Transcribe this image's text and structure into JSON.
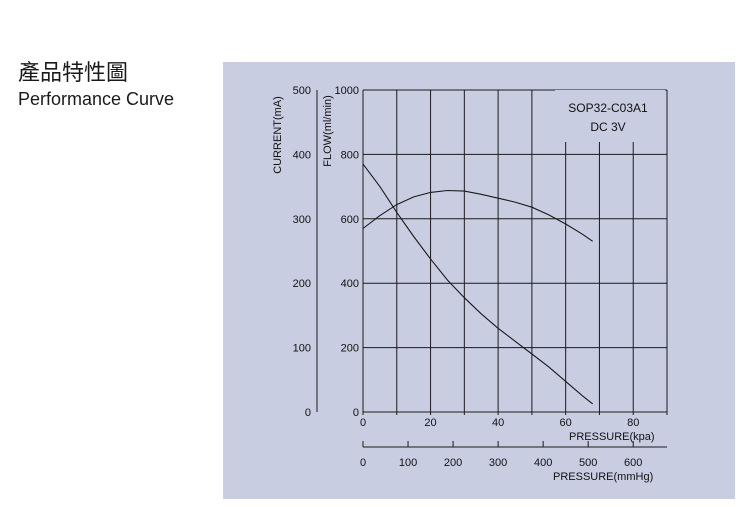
{
  "header": {
    "title_zh": "產品特性圖",
    "title_en": "Performance Curve"
  },
  "panel": {
    "background": "#c9cde1",
    "line_color": "#1a1a1a"
  },
  "chart_data": {
    "type": "line",
    "title": "",
    "model": "SOP32-C03A1",
    "voltage": "DC 3V",
    "x_axis": {
      "label": "PRESSURE(kpa)",
      "range": [
        0,
        90
      ],
      "ticks": [
        0,
        20,
        40,
        60,
        80
      ],
      "grid": [
        0,
        10,
        20,
        30,
        40,
        50,
        60,
        70,
        80,
        90
      ]
    },
    "x2_axis": {
      "label": "PRESSURE(mmHg)",
      "range": [
        0,
        675
      ],
      "ticks": [
        0,
        100,
        200,
        300,
        400,
        500,
        600
      ]
    },
    "y_flow": {
      "label": "FLOW(ml/min)",
      "range": [
        0,
        1000
      ],
      "ticks": [
        0,
        200,
        400,
        600,
        800,
        1000
      ],
      "grid": [
        0,
        200,
        400,
        600,
        800,
        1000
      ]
    },
    "y_current": {
      "label": "CURRENT(mA)",
      "range": [
        0,
        500
      ],
      "ticks": [
        0,
        100,
        200,
        300,
        400,
        500
      ]
    },
    "grid": true,
    "series": [
      {
        "axis": "flow",
        "x": [
          0,
          5,
          10,
          15,
          20,
          25,
          30,
          35,
          40,
          45,
          50,
          55,
          60,
          65,
          68
        ],
        "y": [
          770,
          700,
          620,
          545,
          475,
          410,
          355,
          305,
          260,
          220,
          180,
          140,
          95,
          50,
          25
        ]
      },
      {
        "axis": "current",
        "x": [
          0,
          5,
          10,
          15,
          20,
          25,
          30,
          35,
          40,
          45,
          50,
          55,
          60,
          65,
          68
        ],
        "y": [
          285,
          305,
          322,
          334,
          341,
          344,
          343,
          338,
          332,
          326,
          318,
          306,
          292,
          276,
          265
        ]
      }
    ]
  }
}
